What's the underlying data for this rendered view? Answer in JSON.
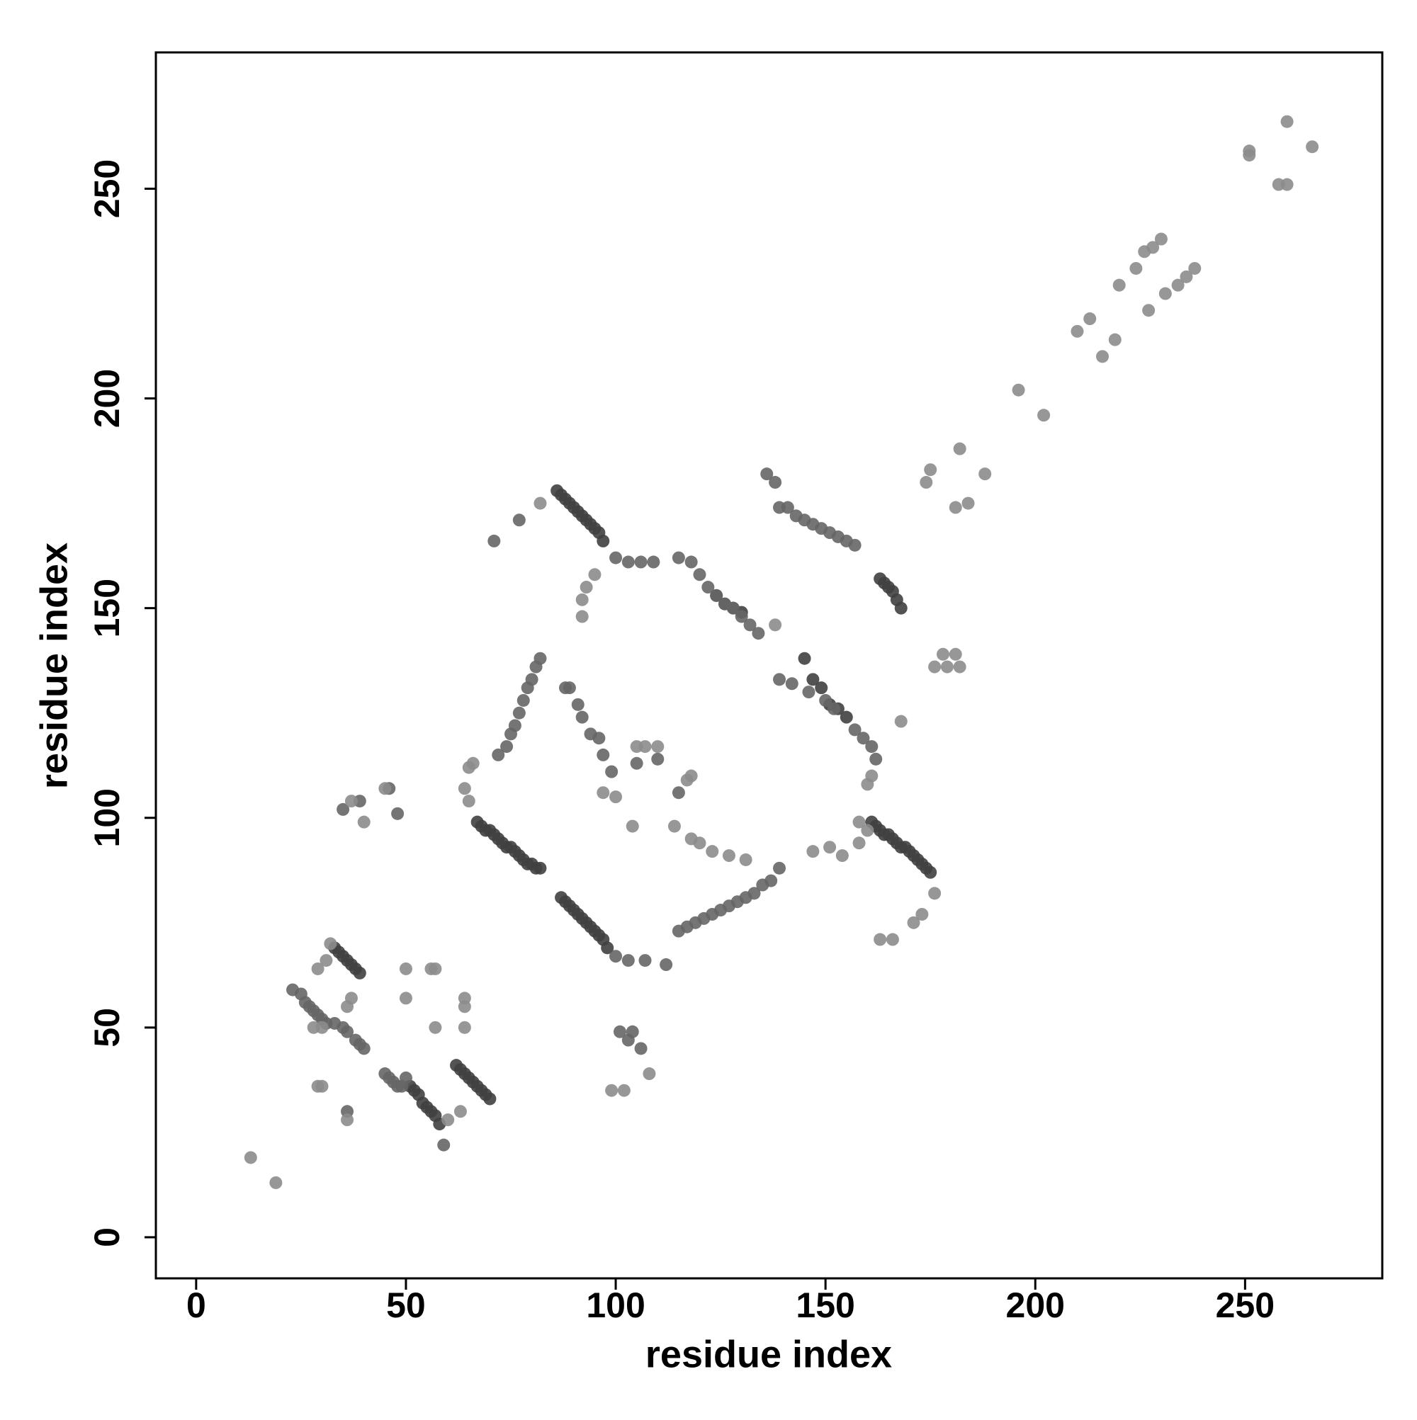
{
  "chart_data": {
    "type": "scatter",
    "xlabel": "residue index",
    "ylabel": "residue index",
    "xlim": [
      -9.6,
      282.7
    ],
    "ylim": [
      -9.8,
      282.5
    ],
    "xticks": [
      0,
      50,
      100,
      150,
      200,
      250
    ],
    "yticks": [
      0,
      50,
      100,
      150,
      200,
      250
    ],
    "series": [
      {
        "color": "#404040",
        "x": [
          86,
          87,
          88,
          89,
          90,
          91,
          92,
          93,
          94,
          95,
          96,
          97,
          67,
          68,
          69,
          70,
          71,
          72,
          73,
          74,
          75,
          76,
          77,
          78,
          79,
          80,
          81,
          82,
          87,
          88,
          89,
          90,
          91,
          92,
          93,
          94,
          95,
          96,
          97,
          98,
          145,
          147,
          149,
          151,
          153,
          155,
          161,
          162,
          163,
          164,
          165,
          166,
          167,
          168,
          169,
          170,
          171,
          172,
          173,
          174,
          175,
          33,
          34,
          35,
          36,
          37,
          38,
          39,
          51,
          52,
          53,
          54,
          55,
          56,
          57,
          58,
          62,
          63,
          64,
          65,
          66,
          67,
          68,
          69,
          70,
          163,
          164,
          165,
          166,
          167,
          168,
          124,
          126,
          128,
          130
        ],
        "values": [
          178,
          177,
          176,
          175,
          174,
          173,
          172,
          171,
          170,
          169,
          168,
          166,
          99,
          98,
          97,
          97,
          96,
          95,
          94,
          93,
          93,
          92,
          91,
          90,
          89,
          89,
          88,
          88,
          81,
          80,
          79,
          78,
          77,
          76,
          75,
          74,
          73,
          72,
          71,
          69,
          138,
          133,
          131,
          127,
          126,
          124,
          99,
          98,
          97,
          96,
          96,
          95,
          94,
          93,
          93,
          92,
          91,
          90,
          89,
          88,
          87,
          69,
          68,
          67,
          66,
          65,
          64,
          63,
          36,
          35,
          34,
          32,
          31,
          30,
          29,
          27,
          41,
          40,
          39,
          38,
          37,
          36,
          35,
          34,
          33,
          157,
          156,
          155,
          154,
          152,
          150,
          153,
          151,
          150,
          149
        ]
      },
      {
        "color": "#666666",
        "x": [
          82,
          81,
          80,
          79,
          78,
          77,
          76,
          75,
          74,
          72,
          88,
          89,
          91,
          92,
          94,
          96,
          97,
          99,
          100,
          103,
          106,
          109,
          115,
          118,
          120,
          122,
          124,
          126,
          128,
          130,
          132,
          134,
          115,
          117,
          119,
          121,
          123,
          125,
          127,
          129,
          131,
          133,
          135,
          137,
          139,
          136,
          138,
          139,
          141,
          143,
          145,
          147,
          149,
          151,
          153,
          155,
          157,
          23,
          25,
          26,
          27,
          28,
          29,
          30,
          31,
          33,
          35,
          36,
          38,
          39,
          40,
          45,
          46,
          47,
          48,
          49,
          50,
          59,
          139,
          142,
          146,
          150,
          152,
          157,
          159,
          161,
          162,
          71,
          77,
          101,
          103,
          104,
          106,
          35,
          39,
          46,
          48,
          36,
          100,
          103,
          107,
          112,
          105,
          110,
          115
        ],
        "values": [
          138,
          136,
          133,
          131,
          128,
          125,
          122,
          120,
          117,
          115,
          131,
          131,
          127,
          124,
          120,
          119,
          115,
          111,
          162,
          161,
          161,
          161,
          162,
          161,
          158,
          155,
          153,
          151,
          150,
          148,
          146,
          144,
          73,
          74,
          75,
          76,
          77,
          78,
          79,
          80,
          81,
          82,
          84,
          85,
          88,
          182,
          180,
          174,
          174,
          172,
          171,
          170,
          169,
          168,
          167,
          166,
          165,
          59,
          58,
          56,
          55,
          54,
          53,
          52,
          51,
          51,
          50,
          49,
          47,
          46,
          45,
          39,
          38,
          37,
          36,
          36,
          38,
          22,
          133,
          132,
          130,
          128,
          126,
          121,
          119,
          117,
          114,
          166,
          171,
          49,
          47,
          49,
          45,
          102,
          104,
          107,
          101,
          30,
          67,
          66,
          66,
          65,
          113,
          114,
          106
        ]
      },
      {
        "color": "#8c8c8c",
        "x": [
          13,
          19,
          196,
          202,
          210,
          213,
          216,
          219,
          220,
          224,
          226,
          227,
          228,
          230,
          231,
          234,
          236,
          238,
          251,
          251,
          258,
          260,
          260,
          266,
          175,
          174,
          182,
          188,
          181,
          184,
          82,
          93,
          92,
          92,
          95,
          65,
          66,
          64,
          65,
          105,
          107,
          110,
          117,
          118,
          104,
          114,
          118,
          120,
          123,
          127,
          131,
          147,
          151,
          154,
          158,
          160,
          158,
          160,
          161,
          168,
          163,
          166,
          171,
          173,
          176,
          176,
          179,
          181,
          178,
          182,
          32,
          29,
          31,
          36,
          37,
          29,
          30,
          36,
          28,
          30,
          50,
          50,
          56,
          57,
          57,
          64,
          64,
          64,
          63,
          60,
          99,
          102,
          108,
          37,
          45,
          40,
          138,
          97,
          100
        ],
        "values": [
          19,
          13,
          202,
          196,
          216,
          219,
          210,
          214,
          227,
          231,
          235,
          221,
          236,
          238,
          225,
          227,
          229,
          231,
          258,
          259,
          251,
          251,
          266,
          260,
          183,
          180,
          188,
          182,
          174,
          175,
          175,
          155,
          152,
          148,
          158,
          112,
          113,
          107,
          104,
          117,
          117,
          117,
          109,
          110,
          98,
          98,
          95,
          94,
          92,
          91,
          90,
          92,
          93,
          91,
          94,
          97,
          99,
          108,
          110,
          123,
          71,
          71,
          75,
          77,
          82,
          136,
          136,
          139,
          139,
          136,
          70,
          64,
          66,
          55,
          57,
          36,
          36,
          28,
          50,
          50,
          57,
          64,
          64,
          64,
          50,
          57,
          55,
          50,
          30,
          28,
          35,
          35,
          39,
          104,
          107,
          99,
          146,
          106,
          105
        ]
      }
    ]
  }
}
